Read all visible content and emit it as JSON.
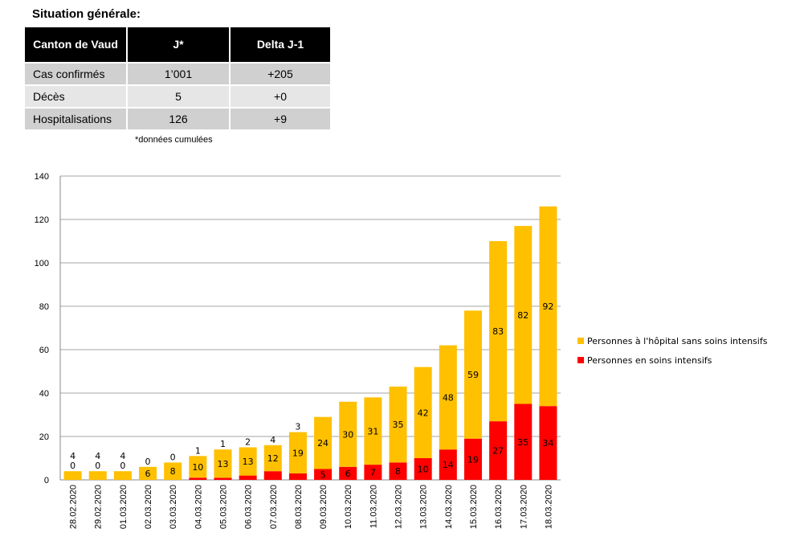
{
  "situation": {
    "title": "Situation générale:",
    "headers": [
      "Canton de Vaud",
      "J*",
      "Delta J-1"
    ],
    "rows": [
      [
        "Cas confirmés",
        "1’001",
        "+205"
      ],
      [
        "Décès",
        "5",
        "+0"
      ],
      [
        "Hospitalisations",
        "126",
        "+9"
      ]
    ],
    "note": "*données cumulées"
  },
  "chart_data": {
    "type": "bar",
    "stacked": true,
    "categories": [
      "28.02.2020",
      "29.02.2020",
      "01.03.2020",
      "02.03.2020",
      "03.03.2020",
      "04.03.2020",
      "05.03.2020",
      "06.03.2020",
      "07.03.2020",
      "08.03.2020",
      "09.03.2020",
      "10.03.2020",
      "11.03.2020",
      "12.03.2020",
      "13.03.2020",
      "14.03.2020",
      "15.03.2020",
      "16.03.2020",
      "17.03.2020",
      "18.03.2020"
    ],
    "series": [
      {
        "name": "Personnes en soins intensifs",
        "color": "#ff0000",
        "values": [
          0,
          0,
          0,
          0,
          0,
          1,
          1,
          2,
          4,
          3,
          5,
          6,
          7,
          8,
          10,
          14,
          19,
          27,
          35,
          34
        ]
      },
      {
        "name": "Personnes à l'hôpital sans soins intensifs",
        "color": "#ffc000",
        "values": [
          4,
          4,
          4,
          6,
          8,
          10,
          13,
          13,
          12,
          19,
          24,
          30,
          31,
          35,
          42,
          48,
          59,
          83,
          82,
          92
        ]
      }
    ],
    "ylim": [
      0,
      140
    ],
    "yticks": [
      0,
      20,
      40,
      60,
      80,
      100,
      120,
      140
    ],
    "grid": true,
    "legend": "right",
    "title": "",
    "xlabel": "",
    "ylabel": ""
  }
}
